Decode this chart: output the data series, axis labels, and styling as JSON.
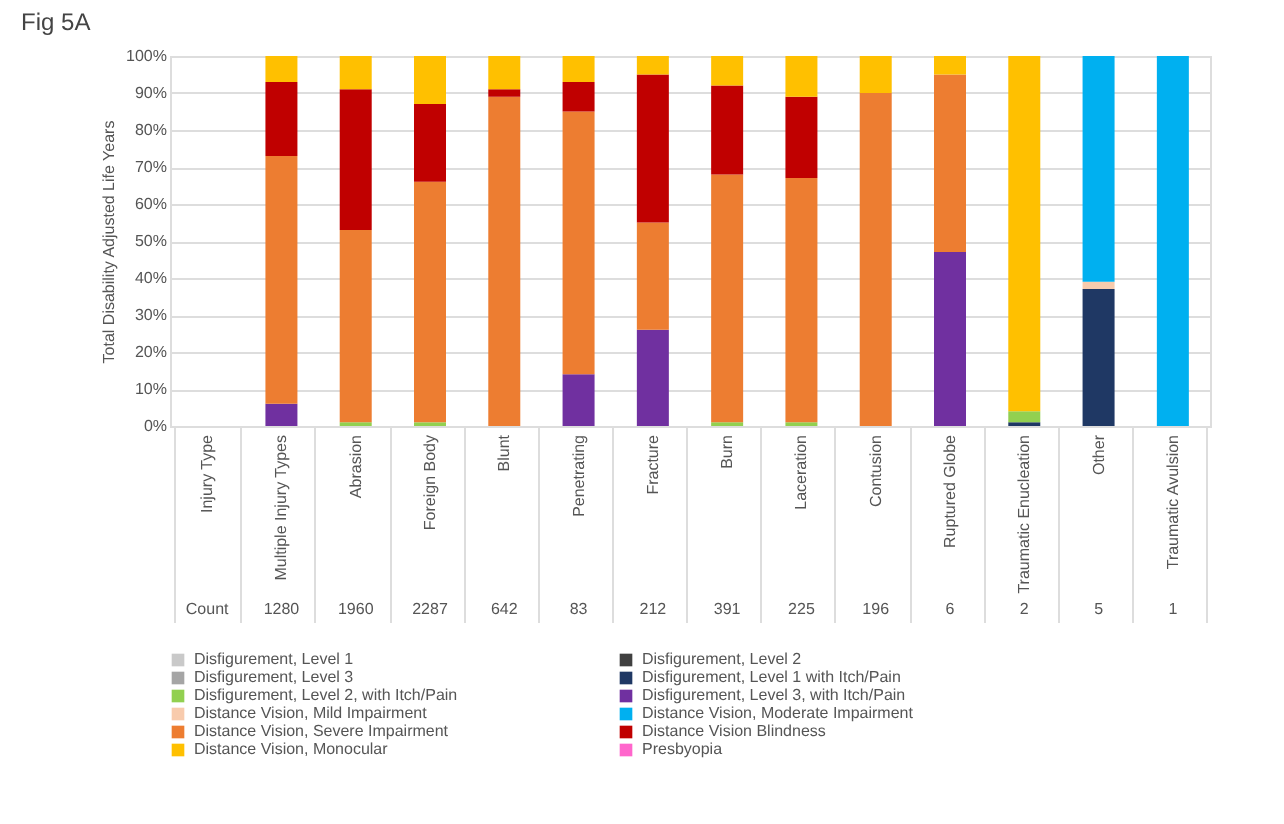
{
  "chart_data": {
    "type": "bar",
    "stacked": true,
    "title": "Fig 5A",
    "ylabel": "Total Disability Adjusted Life Years",
    "categories": [
      "Injury Type",
      "Multiple Injury Types",
      "Abrasion",
      "Foreign Body",
      "Blunt",
      "Penetrating",
      "Fracture",
      "Burn",
      "Laceration",
      "Contusion",
      "Ruptured Globe",
      "Traumatic Enucleation",
      "Other",
      "Traumatic Avulsion"
    ],
    "series": [
      {
        "name": "Disfigurement, Level 1",
        "color": "#c9c9c9",
        "values": [
          null,
          null,
          null,
          null,
          null,
          null,
          null,
          null,
          null,
          null,
          null,
          null,
          null,
          null
        ]
      },
      {
        "name": "Disfigurement, Level 2",
        "color": "#404040",
        "values": [
          null,
          null,
          null,
          null,
          null,
          null,
          null,
          null,
          null,
          null,
          null,
          null,
          null,
          null
        ]
      },
      {
        "name": "Disfigurement, Level 3",
        "color": "#a5a5a5",
        "values": [
          null,
          null,
          null,
          null,
          null,
          null,
          null,
          null,
          null,
          null,
          null,
          null,
          null,
          null
        ]
      },
      {
        "name": "Disfigurement, Level 1 with Itch/Pain",
        "color": "#1f3864",
        "values": [
          null,
          null,
          null,
          null,
          null,
          null,
          null,
          null,
          null,
          null,
          null,
          1,
          37,
          null
        ]
      },
      {
        "name": "Disfigurement, Level 2, with Itch/Pain",
        "color": "#92d050",
        "values": [
          null,
          null,
          1,
          1,
          null,
          null,
          null,
          1,
          1,
          null,
          null,
          3,
          null,
          null
        ]
      },
      {
        "name": "Disfigurement, Level 3, with Itch/Pain",
        "color": "#7030a0",
        "values": [
          null,
          6,
          null,
          null,
          null,
          14,
          26,
          null,
          null,
          null,
          47,
          null,
          null,
          null
        ]
      },
      {
        "name": "Distance Vision, Mild Impairment",
        "color": "#f8cbad",
        "values": [
          null,
          null,
          null,
          null,
          null,
          null,
          null,
          null,
          null,
          null,
          null,
          null,
          2,
          null
        ]
      },
      {
        "name": "Distance Vision, Moderate Impairment",
        "color": "#00b0f0",
        "values": [
          null,
          null,
          null,
          null,
          null,
          null,
          null,
          null,
          null,
          null,
          null,
          null,
          61,
          100
        ]
      },
      {
        "name": "Distance Vision, Severe Impairment",
        "color": "#ed7d31",
        "values": [
          null,
          67,
          52,
          65,
          89,
          71,
          29,
          67,
          66,
          90,
          48,
          null,
          null,
          null
        ]
      },
      {
        "name": "Distance Vision Blindness",
        "color": "#c00000",
        "values": [
          null,
          20,
          38,
          21,
          2,
          8,
          40,
          24,
          22,
          null,
          null,
          null,
          null,
          null
        ]
      },
      {
        "name": "Distance Vision, Monocular",
        "color": "#ffc000",
        "values": [
          null,
          7,
          9,
          13,
          9,
          7,
          5,
          8,
          11,
          10,
          5,
          96,
          null,
          null
        ]
      },
      {
        "name": "Presbyopia",
        "color": "#ff66cc",
        "values": [
          null,
          null,
          null,
          null,
          null,
          null,
          null,
          null,
          null,
          null,
          null,
          null,
          null,
          null
        ]
      }
    ],
    "ylim": [
      0,
      100
    ],
    "yticks": [
      {
        "value": 0,
        "label": "0%"
      },
      {
        "value": 10,
        "label": "10%"
      },
      {
        "value": 20,
        "label": "20%"
      },
      {
        "value": 30,
        "label": "30%"
      },
      {
        "value": 40,
        "label": "40%"
      },
      {
        "value": 50,
        "label": "50%"
      },
      {
        "value": 60,
        "label": "60%"
      },
      {
        "value": 70,
        "label": "70%"
      },
      {
        "value": 80,
        "label": "80%"
      },
      {
        "value": 90,
        "label": "90%"
      },
      {
        "value": 100,
        "label": "100%"
      }
    ],
    "grid": "y",
    "legend": "bottom",
    "annotations": [
      "Count",
      "1280",
      "1960",
      "2287",
      "642",
      "83",
      "212",
      "391",
      "225",
      "196",
      "6",
      "2",
      "5",
      "1"
    ]
  }
}
